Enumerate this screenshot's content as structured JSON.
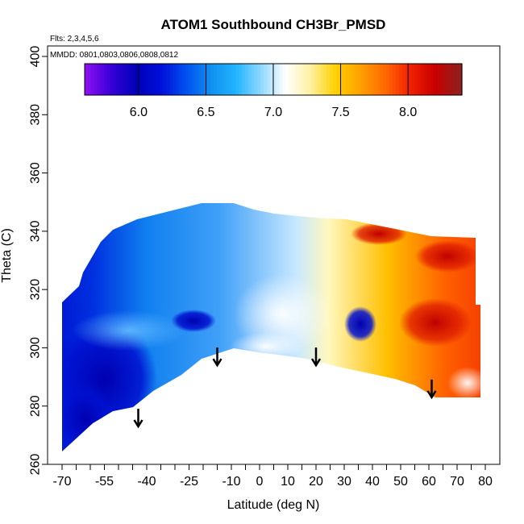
{
  "chart_data": {
    "type": "heatmap",
    "title": "ATOM1 Southbound CH3Br_PMSD",
    "subtitle": "Flts: 2,3,4,5,6",
    "annotation": "MMDD: 0801,0803,0806,0808,0812",
    "xlabel": "Latitude (deg N)",
    "ylabel": "Theta (C)",
    "xlim": [
      -70,
      80
    ],
    "ylim": [
      260,
      400
    ],
    "x_ticks_labeled": [
      -70,
      -55,
      -40,
      -25,
      -10,
      0,
      10,
      20,
      30,
      40,
      50,
      60,
      70,
      80
    ],
    "x_ticks_minor": [
      -65,
      -60,
      -50,
      -45,
      -35,
      -30,
      -20,
      -15,
      -5,
      5,
      15,
      25,
      35,
      45,
      55,
      65,
      75
    ],
    "y_ticks": [
      260,
      280,
      300,
      320,
      340,
      360,
      380,
      400
    ],
    "colorbar": {
      "range": [
        5.6,
        8.4
      ],
      "ticks": [
        6.0,
        6.5,
        7.0,
        7.5,
        8.0
      ],
      "colors": [
        "#8b10f0",
        "#3800d8",
        "#0000b8",
        "#0010d8",
        "#0050f0",
        "#1090f0",
        "#20b4ff",
        "#90d8ff",
        "#ffffff",
        "#fff0a0",
        "#ffd000",
        "#ffa000",
        "#ff6800",
        "#f02000",
        "#c80000",
        "#902020"
      ]
    },
    "arrows_latitude": [
      -43,
      -15,
      20,
      61
    ],
    "arrow_values": [
      {
        "lat": -43,
        "theta": 275
      },
      {
        "lat": -15,
        "theta": 296
      },
      {
        "lat": 20,
        "theta": 296
      },
      {
        "lat": 61,
        "theta": 285
      }
    ],
    "grid": false,
    "legend": "top-colorbar"
  }
}
